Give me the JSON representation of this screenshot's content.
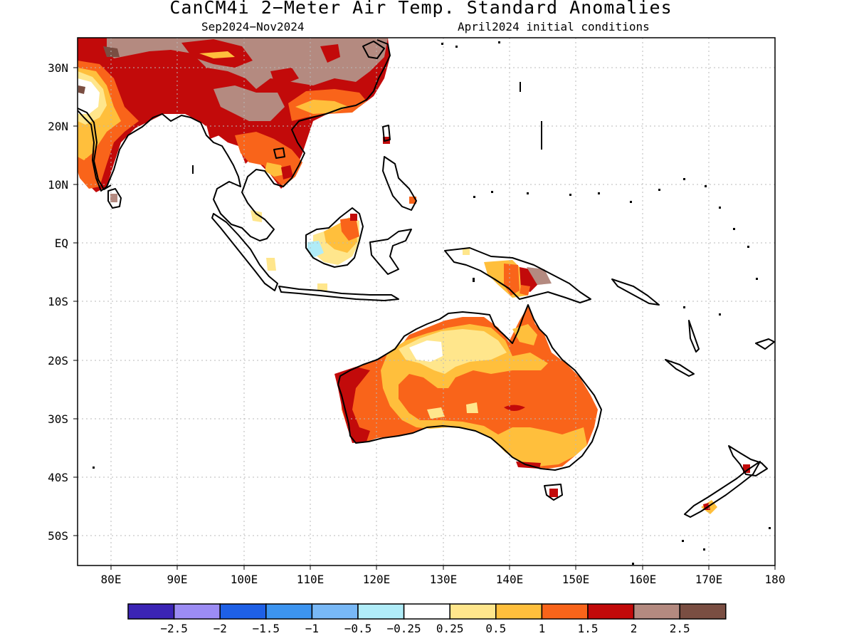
{
  "title": "CanCM4i 2−Meter Air Temp. Standard Anomalies",
  "subtitle_left": "Sep2024−Nov2024",
  "subtitle_right": "April2024 initial conditions",
  "lat_labels": [
    "30N",
    "20N",
    "10N",
    "EQ",
    "10S",
    "20S",
    "30S",
    "40S",
    "50S"
  ],
  "lon_labels": [
    "80E",
    "90E",
    "100E",
    "110E",
    "120E",
    "130E",
    "140E",
    "150E",
    "160E",
    "170E",
    "180"
  ],
  "legend": {
    "colors": [
      "#3b24b5",
      "#9c8cf4",
      "#1e60e6",
      "#3c94f0",
      "#78b8f6",
      "#b0ecf8",
      "#ffffff",
      "#ffe68c",
      "#ffbf3c",
      "#f9641a",
      "#c20a0a",
      "#b48a80",
      "#7a4e42"
    ],
    "labels": [
      "−2.5",
      "−2",
      "−1.5",
      "−1",
      "−0.5",
      "−0.25",
      "0.25",
      "0.5",
      "1",
      "1.5",
      "2",
      "2.5"
    ]
  }
}
